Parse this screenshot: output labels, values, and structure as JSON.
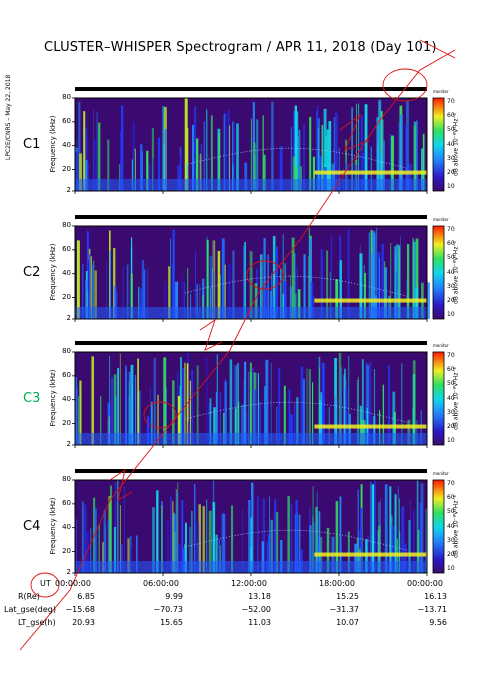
{
  "title": "CLUSTER–WHISPER Spectrogram / APR 11, 2018 (Day 101)",
  "side_credit": "LPC2E/CNRS – May 22, 2018",
  "colors": {
    "c3_label": "#00b050",
    "annotation": "#e01010"
  },
  "chart_data": {
    "type": "heatmap",
    "panels": [
      {
        "name": "C1"
      },
      {
        "name": "C2"
      },
      {
        "name": "C3"
      },
      {
        "name": "C4"
      }
    ],
    "ylabel": "Frequency (kHz)",
    "yticks": [
      "2",
      "20",
      "40",
      "60",
      "80"
    ],
    "ylim": [
      2,
      80
    ],
    "colorbar": {
      "label": "dB above 10⁻⁸V²Hz⁻¹",
      "ticks": [
        "10",
        "20",
        "30",
        "40",
        "50",
        "60",
        "70"
      ],
      "range": [
        10,
        70
      ],
      "top_label": "monitor"
    },
    "xticks": [
      "00:00:00",
      "06:00:00",
      "12:00:00",
      "18:00:00",
      "00:00:00"
    ],
    "orbit_rows": [
      {
        "label": "UT",
        "values": [
          "00:00:00",
          "06:00:00",
          "12:00:00",
          "18:00:00",
          "00:00:00"
        ]
      },
      {
        "label": "R(Re)",
        "values": [
          "6.85",
          "9.99",
          "13.18",
          "15.25",
          "16.13"
        ]
      },
      {
        "label": "Lat_gse(deg)",
        "values": [
          "−15.68",
          "−70.73",
          "−52.00",
          "−31.37",
          "−13.71"
        ]
      },
      {
        "label": "LT_gse(h)",
        "values": [
          "20.93",
          "15.65",
          "11.03",
          "10.07",
          "9.56"
        ]
      }
    ]
  }
}
